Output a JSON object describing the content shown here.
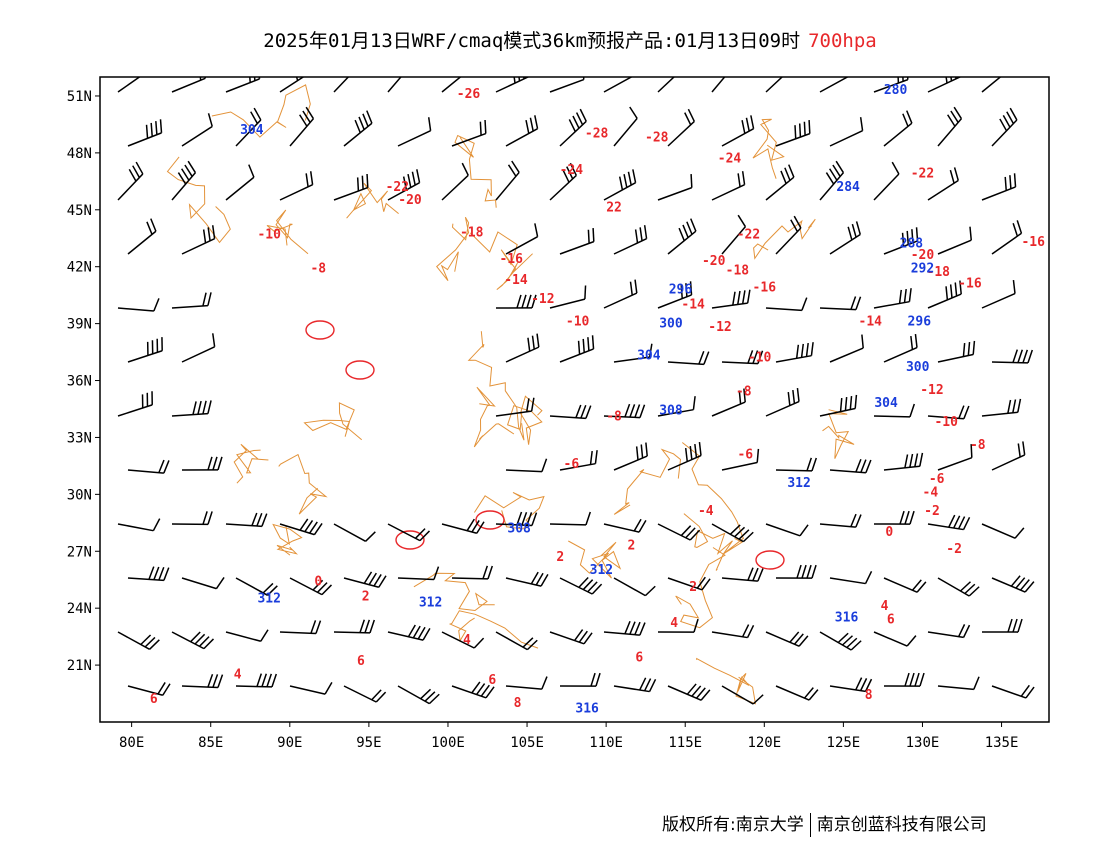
{
  "title": {
    "main": "2025年01月13日WRF/cmaq模式36km预报产品:01月13日09时",
    "level": "700hpa"
  },
  "axes": {
    "lon_labels": [
      "80E",
      "85E",
      "90E",
      "95E",
      "100E",
      "105E",
      "110E",
      "115E",
      "120E",
      "125E",
      "130E",
      "135E"
    ],
    "lon_values": [
      80,
      85,
      90,
      95,
      100,
      105,
      110,
      115,
      120,
      125,
      130,
      135
    ],
    "lat_labels": [
      "51N",
      "48N",
      "45N",
      "42N",
      "39N",
      "36N",
      "33N",
      "30N",
      "27N",
      "24N",
      "21N"
    ],
    "lat_values": [
      51,
      48,
      45,
      42,
      39,
      36,
      33,
      30,
      27,
      24,
      21
    ],
    "lon_range": [
      78,
      138
    ],
    "lat_range": [
      18,
      52
    ]
  },
  "colors": {
    "temperature": "#e8282b",
    "geopotential_height": "#1a3ddb",
    "wind_barb": "#000000",
    "boundary": "#e3933a"
  },
  "temperature_labels": [
    {
      "text": "-26",
      "lon": 101.3,
      "lat": 50.9
    },
    {
      "text": "-28",
      "lon": 109.4,
      "lat": 48.8
    },
    {
      "text": "-28",
      "lon": 113.2,
      "lat": 48.6
    },
    {
      "text": "-24",
      "lon": 117.8,
      "lat": 47.5
    },
    {
      "text": "-24",
      "lon": 107.8,
      "lat": 46.9
    },
    {
      "text": "-22",
      "lon": 96.8,
      "lat": 46.0
    },
    {
      "text": "-20",
      "lon": 97.6,
      "lat": 45.3
    },
    {
      "text": "22",
      "lon": 110.5,
      "lat": 44.9
    },
    {
      "text": "-22",
      "lon": 130.0,
      "lat": 46.7
    },
    {
      "text": "-22",
      "lon": 119.0,
      "lat": 43.5
    },
    {
      "text": "-18",
      "lon": 101.5,
      "lat": 43.6
    },
    {
      "text": "-10",
      "lon": 88.7,
      "lat": 43.5
    },
    {
      "text": "-8",
      "lon": 91.8,
      "lat": 41.7
    },
    {
      "text": "-16",
      "lon": 104.0,
      "lat": 42.2
    },
    {
      "text": "-14",
      "lon": 104.3,
      "lat": 41.1
    },
    {
      "text": "-20",
      "lon": 116.8,
      "lat": 42.1
    },
    {
      "text": "-18",
      "lon": 118.3,
      "lat": 41.6
    },
    {
      "text": "-16",
      "lon": 120.0,
      "lat": 40.7
    },
    {
      "text": "-14",
      "lon": 115.5,
      "lat": 39.8
    },
    {
      "text": "-12",
      "lon": 106.0,
      "lat": 40.1
    },
    {
      "text": "-10",
      "lon": 108.2,
      "lat": 38.9
    },
    {
      "text": "-12",
      "lon": 117.2,
      "lat": 38.6
    },
    {
      "text": "-14",
      "lon": 126.7,
      "lat": 38.9
    },
    {
      "text": "-20",
      "lon": 130.0,
      "lat": 42.4
    },
    {
      "text": "-18",
      "lon": 131.0,
      "lat": 41.5
    },
    {
      "text": "-16",
      "lon": 133.0,
      "lat": 40.9
    },
    {
      "text": "-16",
      "lon": 137.0,
      "lat": 43.1
    },
    {
      "text": "-10",
      "lon": 119.7,
      "lat": 37.0
    },
    {
      "text": "-8",
      "lon": 118.7,
      "lat": 35.2
    },
    {
      "text": "-12",
      "lon": 130.6,
      "lat": 35.3
    },
    {
      "text": "-10",
      "lon": 131.5,
      "lat": 33.6
    },
    {
      "text": "-8",
      "lon": 133.5,
      "lat": 32.4
    },
    {
      "text": "-8",
      "lon": 110.5,
      "lat": 33.9
    },
    {
      "text": "-6",
      "lon": 118.8,
      "lat": 31.9
    },
    {
      "text": "-6",
      "lon": 107.8,
      "lat": 31.4
    },
    {
      "text": "-6",
      "lon": 130.9,
      "lat": 30.6
    },
    {
      "text": "-4",
      "lon": 130.5,
      "lat": 29.9
    },
    {
      "text": "-4",
      "lon": 116.3,
      "lat": 28.9
    },
    {
      "text": "-2",
      "lon": 130.6,
      "lat": 28.9
    },
    {
      "text": "0",
      "lon": 127.9,
      "lat": 27.8
    },
    {
      "text": "-2",
      "lon": 132.0,
      "lat": 26.9
    },
    {
      "text": "2",
      "lon": 111.6,
      "lat": 27.1
    },
    {
      "text": "2",
      "lon": 107.1,
      "lat": 26.5
    },
    {
      "text": "0",
      "lon": 91.8,
      "lat": 25.2
    },
    {
      "text": "2",
      "lon": 94.8,
      "lat": 24.4
    },
    {
      "text": "2",
      "lon": 115.5,
      "lat": 24.9
    },
    {
      "text": "4",
      "lon": 114.3,
      "lat": 23.0
    },
    {
      "text": "4",
      "lon": 127.6,
      "lat": 23.9
    },
    {
      "text": "6",
      "lon": 128.0,
      "lat": 23.2
    },
    {
      "text": "4",
      "lon": 101.2,
      "lat": 22.1
    },
    {
      "text": "6",
      "lon": 94.5,
      "lat": 21.0
    },
    {
      "text": "6",
      "lon": 112.1,
      "lat": 21.2
    },
    {
      "text": "6",
      "lon": 102.8,
      "lat": 20.0
    },
    {
      "text": "4",
      "lon": 86.7,
      "lat": 20.3
    },
    {
      "text": "6",
      "lon": 81.4,
      "lat": 19.0
    },
    {
      "text": "8",
      "lon": 104.4,
      "lat": 18.8
    },
    {
      "text": "8",
      "lon": 126.6,
      "lat": 19.2
    }
  ],
  "height_labels": [
    {
      "text": "304",
      "lon": 87.6,
      "lat": 49.0
    },
    {
      "text": "280",
      "lon": 128.3,
      "lat": 51.1
    },
    {
      "text": "284",
      "lon": 125.3,
      "lat": 46.0
    },
    {
      "text": "288",
      "lon": 129.3,
      "lat": 43.0
    },
    {
      "text": "292",
      "lon": 130.0,
      "lat": 41.7
    },
    {
      "text": "296",
      "lon": 114.7,
      "lat": 40.6
    },
    {
      "text": "296",
      "lon": 129.8,
      "lat": 38.9
    },
    {
      "text": "300",
      "lon": 114.1,
      "lat": 38.8
    },
    {
      "text": "300",
      "lon": 129.7,
      "lat": 36.5
    },
    {
      "text": "304",
      "lon": 112.7,
      "lat": 37.1
    },
    {
      "text": "304",
      "lon": 127.7,
      "lat": 34.6
    },
    {
      "text": "308",
      "lon": 114.1,
      "lat": 34.2
    },
    {
      "text": "312",
      "lon": 122.2,
      "lat": 30.4
    },
    {
      "text": "308",
      "lon": 104.5,
      "lat": 28.0
    },
    {
      "text": "312",
      "lon": 109.7,
      "lat": 25.8
    },
    {
      "text": "312",
      "lon": 88.7,
      "lat": 24.3
    },
    {
      "text": "312",
      "lon": 98.9,
      "lat": 24.1
    },
    {
      "text": "316",
      "lon": 125.2,
      "lat": 23.3
    },
    {
      "text": "316",
      "lon": 108.8,
      "lat": 18.5
    }
  ],
  "footer": {
    "left": "版权所有:南京大学",
    "right": "南京创蓝科技有限公司"
  }
}
